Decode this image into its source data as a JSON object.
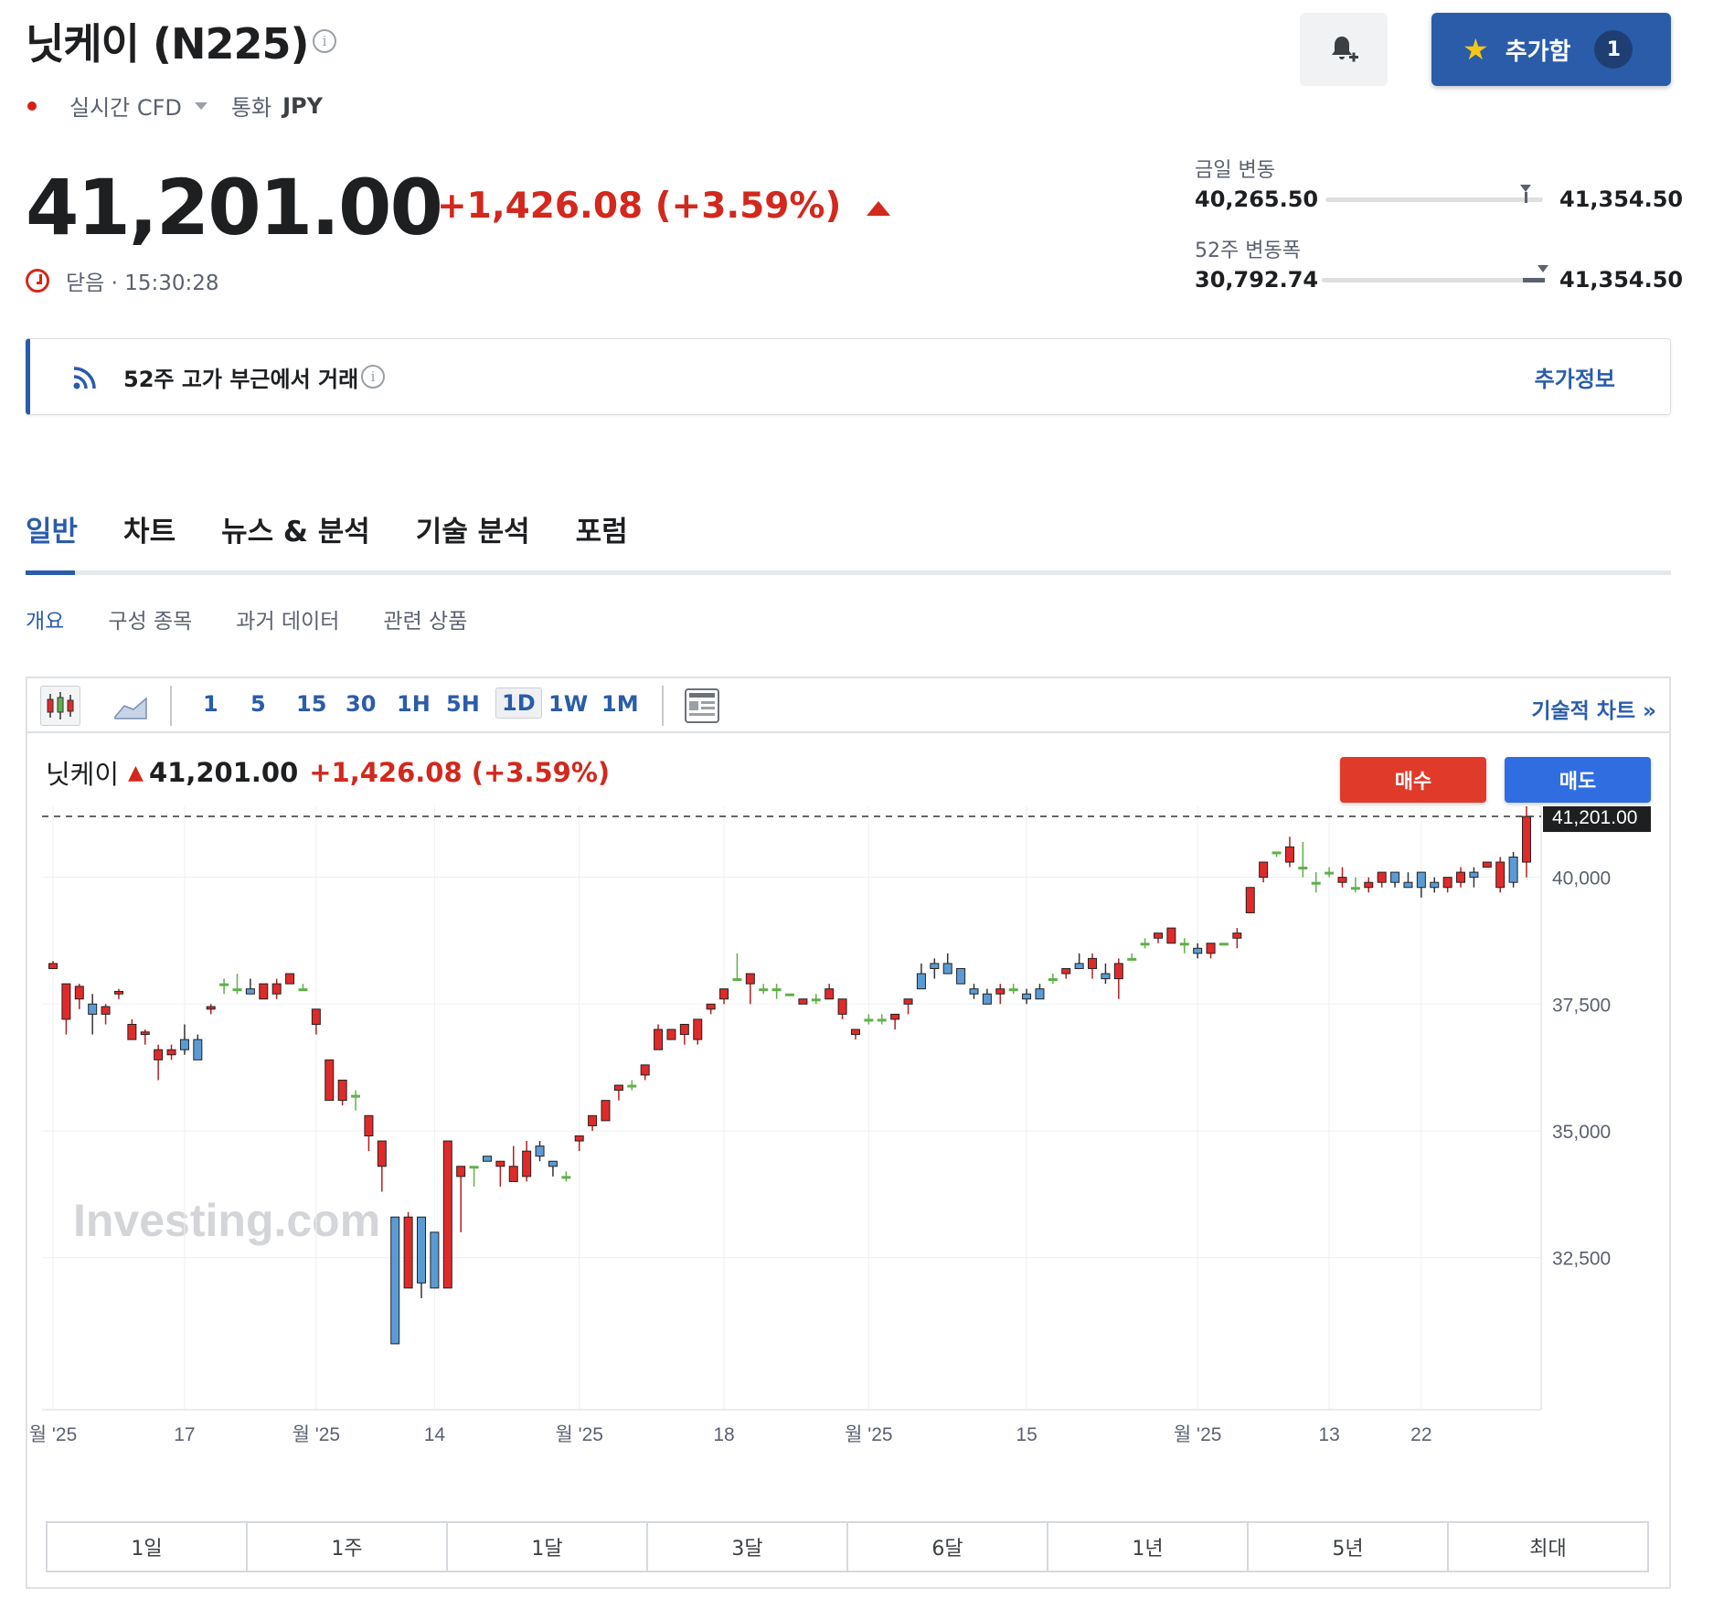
{
  "header": {
    "title": "닛케이 (N225)",
    "feed_type": "실시간 CFD",
    "currency_label": "통화",
    "currency": "JPY",
    "watchlist_label": "추가함",
    "watchlist_count": "1"
  },
  "quote": {
    "price": "41,201.00",
    "change": "+1,426.08 (+3.59%)",
    "status": "닫음 · 15:30:28"
  },
  "ranges": {
    "day_label": "금일 변동",
    "day_low": "40,265.50",
    "day_high": "41,354.50",
    "day_position": 0.92,
    "week52_label": "52주 변동폭",
    "week52_low": "30,792.74",
    "week52_high": "41,354.50",
    "week52_position": 0.99
  },
  "alert": {
    "text": "52주 고가 부근에서 거래",
    "link": "추가정보"
  },
  "tabs": [
    "일반",
    "차트",
    "뉴스 & 분석",
    "기술 분석",
    "포럼"
  ],
  "subtabs": [
    "개요",
    "구성 종목",
    "과거 데이터",
    "관련 상품"
  ],
  "toolbar": {
    "timeframes": [
      "1",
      "5",
      "15",
      "30",
      "1H",
      "5H",
      "1D",
      "1W",
      "1M"
    ],
    "active_timeframe": "1D",
    "tech_chart_link": "기술적 차트 »"
  },
  "chart_header": {
    "name": "닛케이",
    "price": "41,201.00",
    "change": "+1,426.08 (+3.59%)",
    "buy": "매수",
    "sell": "매도"
  },
  "range_tabs": [
    "1일",
    "1주",
    "1달",
    "3달",
    "6달",
    "1년",
    "5년",
    "최대"
  ],
  "colors": {
    "up_candle": "#e02a2a",
    "down_candle": "#5b9bd5",
    "accent": "#2a5caa",
    "change_red": "#d2281d"
  },
  "chart_data": {
    "type": "candlestick",
    "watermark": "Investing.com",
    "last_price_label": "41,201.00",
    "last_price": 41201,
    "y_ticks": [
      {
        "label": "40,000",
        "value": 40000
      },
      {
        "label": "37,500",
        "value": 37500
      },
      {
        "label": "35,000",
        "value": 35000
      },
      {
        "label": "32,500",
        "value": 32500
      }
    ],
    "ylim": [
      29500,
      41400
    ],
    "x_ticks": [
      {
        "label": "월 '25",
        "index": 0
      },
      {
        "label": "17",
        "index": 10
      },
      {
        "label": "월 '25",
        "index": 20
      },
      {
        "label": "14",
        "index": 29
      },
      {
        "label": "월 '25",
        "index": 40
      },
      {
        "label": "18",
        "index": 51
      },
      {
        "label": "월 '25",
        "index": 62
      },
      {
        "label": "15",
        "index": 74
      },
      {
        "label": "월 '25",
        "index": 87
      },
      {
        "label": "13",
        "index": 97
      },
      {
        "label": "22",
        "index": 104
      }
    ],
    "candles": [
      [
        38200,
        38350,
        38300,
        38300
      ],
      [
        37200,
        37900,
        36900,
        37900
      ],
      [
        37600,
        37900,
        37400,
        37850
      ],
      [
        37500,
        37700,
        36900,
        37300
      ],
      [
        37300,
        37500,
        37100,
        37450
      ],
      [
        37700,
        37800,
        37600,
        37750
      ],
      [
        36800,
        37200,
        36800,
        37100
      ],
      [
        36900,
        37000,
        36700,
        36950
      ],
      [
        36400,
        36700,
        36000,
        36600
      ],
      [
        36500,
        36700,
        36400,
        36600
      ],
      [
        36800,
        37100,
        36500,
        36600
      ],
      [
        36800,
        36900,
        36400,
        36400
      ],
      [
        37400,
        37500,
        37300,
        37450
      ],
      [
        37900,
        38000,
        37700,
        37900
      ],
      [
        37800,
        38100,
        37700,
        37800
      ],
      [
        37800,
        38000,
        37700,
        37700
      ],
      [
        37600,
        37900,
        37600,
        37900
      ],
      [
        37700,
        38000,
        37600,
        37900
      ],
      [
        37900,
        38100,
        37900,
        38100
      ],
      [
        37800,
        37900,
        37800,
        37800
      ],
      [
        37100,
        37400,
        36900,
        37400
      ],
      [
        35600,
        36400,
        35600,
        36400
      ],
      [
        35600,
        36000,
        35500,
        36000
      ],
      [
        35700,
        35800,
        35400,
        35700
      ],
      [
        34900,
        35300,
        34600,
        35300
      ],
      [
        34300,
        34800,
        33800,
        34800
      ],
      [
        33300,
        33300,
        30800,
        30800
      ],
      [
        31900,
        33400,
        31900,
        33300
      ],
      [
        33300,
        33300,
        31700,
        32000
      ],
      [
        33000,
        33000,
        31900,
        31900
      ],
      [
        31900,
        34800,
        31900,
        34800
      ],
      [
        34100,
        34300,
        33000,
        34300
      ],
      [
        34300,
        34300,
        33900,
        34300
      ],
      [
        34500,
        34500,
        34400,
        34400
      ],
      [
        34300,
        34400,
        33900,
        34400
      ],
      [
        34000,
        34700,
        34000,
        34300
      ],
      [
        34100,
        34800,
        34000,
        34600
      ],
      [
        34700,
        34800,
        34400,
        34500
      ],
      [
        34400,
        34400,
        34100,
        34300
      ],
      [
        34100,
        34200,
        34000,
        34100
      ],
      [
        34800,
        34900,
        34600,
        34900
      ],
      [
        35100,
        35300,
        35000,
        35300
      ],
      [
        35200,
        35600,
        35200,
        35600
      ],
      [
        35800,
        35900,
        35600,
        35900
      ],
      [
        35900,
        36000,
        35800,
        35900
      ],
      [
        36100,
        36300,
        36000,
        36300
      ],
      [
        36600,
        37100,
        36600,
        37000
      ],
      [
        36800,
        37000,
        36800,
        37000
      ],
      [
        36900,
        37000,
        36700,
        37100
      ],
      [
        36800,
        37200,
        36700,
        37200
      ],
      [
        37400,
        37500,
        37300,
        37500
      ],
      [
        37600,
        37800,
        37500,
        37800
      ],
      [
        38000,
        38500,
        38000,
        38000
      ],
      [
        37900,
        38100,
        37500,
        38100
      ],
      [
        37800,
        37900,
        37700,
        37800
      ],
      [
        37800,
        37900,
        37600,
        37800
      ],
      [
        37700,
        37700,
        37700,
        37700
      ],
      [
        37500,
        37600,
        37500,
        37600
      ],
      [
        37600,
        37700,
        37500,
        37600
      ],
      [
        37600,
        37900,
        37600,
        37800
      ],
      [
        37300,
        37600,
        37200,
        37600
      ],
      [
        36900,
        37000,
        36800,
        37000
      ],
      [
        37200,
        37300,
        37100,
        37200
      ],
      [
        37200,
        37300,
        37100,
        37200
      ],
      [
        37200,
        37300,
        37000,
        37300
      ],
      [
        37500,
        37600,
        37300,
        37600
      ],
      [
        38100,
        38300,
        37800,
        37800
      ],
      [
        38300,
        38400,
        38000,
        38200
      ],
      [
        38300,
        38500,
        38100,
        38100
      ],
      [
        38200,
        38200,
        37900,
        37900
      ],
      [
        37800,
        37900,
        37600,
        37700
      ],
      [
        37700,
        37800,
        37500,
        37500
      ],
      [
        37700,
        37900,
        37500,
        37800
      ],
      [
        37800,
        37900,
        37700,
        37800
      ],
      [
        37700,
        37800,
        37500,
        37600
      ],
      [
        37800,
        37900,
        37700,
        37600
      ],
      [
        38000,
        38100,
        37900,
        38000
      ],
      [
        38100,
        38200,
        38000,
        38200
      ],
      [
        38300,
        38500,
        38200,
        38200
      ],
      [
        38200,
        38500,
        38000,
        38400
      ],
      [
        38100,
        38300,
        37900,
        38000
      ],
      [
        38000,
        38400,
        37600,
        38300
      ],
      [
        38400,
        38500,
        38400,
        38400
      ],
      [
        38700,
        38800,
        38600,
        38700
      ],
      [
        38800,
        38900,
        38700,
        38900
      ],
      [
        38700,
        39000,
        38700,
        39000
      ],
      [
        38700,
        38800,
        38500,
        38700
      ],
      [
        38600,
        38700,
        38400,
        38500
      ],
      [
        38500,
        38700,
        38400,
        38700
      ],
      [
        38700,
        38700,
        38700,
        38700
      ],
      [
        38800,
        39000,
        38600,
        38900
      ],
      [
        39300,
        39800,
        39300,
        39800
      ],
      [
        40000,
        40300,
        39900,
        40300
      ],
      [
        40500,
        40500,
        40400,
        40500
      ],
      [
        40300,
        40800,
        40200,
        40600
      ],
      [
        40200,
        40700,
        40000,
        40200
      ],
      [
        39900,
        40100,
        39700,
        39900
      ],
      [
        40100,
        40200,
        40000,
        40100
      ],
      [
        39900,
        40200,
        39800,
        40000
      ],
      [
        39800,
        40000,
        39700,
        39800
      ],
      [
        39800,
        40000,
        39700,
        39900
      ],
      [
        39900,
        40000,
        39800,
        40100
      ],
      [
        40100,
        40100,
        39800,
        39900
      ],
      [
        39900,
        40100,
        39800,
        39800
      ],
      [
        40100,
        40100,
        39600,
        39800
      ],
      [
        39900,
        40000,
        39700,
        39800
      ],
      [
        39800,
        39900,
        39700,
        40000
      ],
      [
        39900,
        40200,
        39800,
        40100
      ],
      [
        40100,
        40200,
        39800,
        40000
      ],
      [
        40200,
        40300,
        40200,
        40300
      ],
      [
        39800,
        40400,
        39700,
        40300
      ],
      [
        40400,
        40500,
        39800,
        39900
      ],
      [
        40300,
        41400,
        40000,
        41201
      ]
    ]
  }
}
